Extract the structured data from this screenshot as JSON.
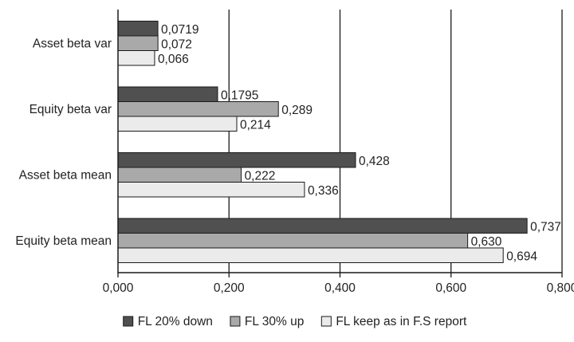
{
  "chart_data": {
    "type": "bar",
    "orientation": "horizontal",
    "title": "",
    "xlabel": "",
    "ylabel": "",
    "categories": [
      "Asset beta var",
      "Equity beta var",
      "Asset beta mean",
      "Equity beta mean"
    ],
    "series": [
      {
        "name": "FL 20% down",
        "color": "#505050",
        "values": [
          0.0719,
          0.1795,
          0.428,
          0.737
        ],
        "labels": [
          "0,0719",
          "0,1795",
          "0,428",
          "0,737"
        ]
      },
      {
        "name": "FL 30% up",
        "color": "#a9a9a9",
        "values": [
          0.072,
          0.289,
          0.222,
          0.63
        ],
        "labels": [
          "0,072",
          "0,289",
          "0,222",
          "0,630"
        ]
      },
      {
        "name": "FL keep as in F.S report",
        "color": "#ebebeb",
        "values": [
          0.066,
          0.214,
          0.336,
          0.694
        ],
        "labels": [
          "0,066",
          "0,214",
          "0,336",
          "0,694"
        ]
      }
    ],
    "xlim": [
      0,
      0.8
    ],
    "xticks": [
      0,
      0.2,
      0.4,
      0.6,
      0.8
    ],
    "xtick_labels": [
      "0,000",
      "0,200",
      "0,400",
      "0,600",
      "0,800"
    ],
    "grid": true,
    "legend_position": "bottom"
  }
}
